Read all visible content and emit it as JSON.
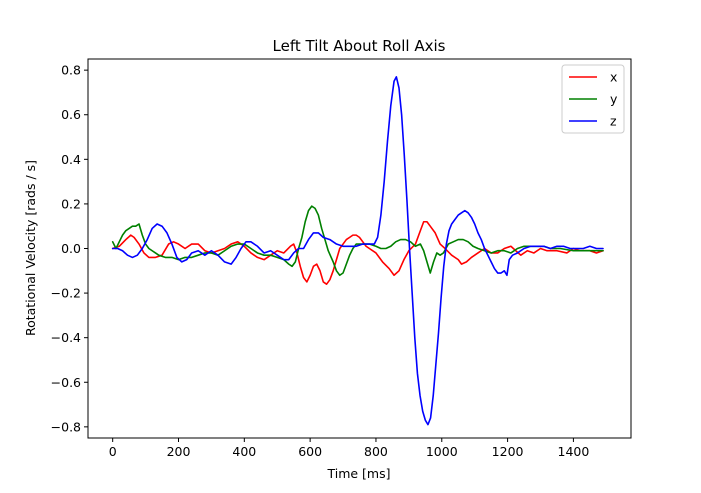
{
  "chart_data": {
    "type": "line",
    "title": "Left Tilt About Roll Axis",
    "xlabel": "Time [ms]",
    "ylabel": "Rotational Velocity [rads / s]",
    "xlim": [
      -75,
      1575
    ],
    "ylim": [
      -0.85,
      0.85
    ],
    "xticks": [
      0,
      200,
      400,
      600,
      800,
      1000,
      1200,
      1400
    ],
    "yticks": [
      -0.8,
      -0.6,
      -0.4,
      -0.2,
      0.0,
      0.2,
      0.4,
      0.6,
      0.8
    ],
    "ytick_labels": [
      "−0.8",
      "−0.6",
      "−0.4",
      "−0.2",
      "0.0",
      "0.2",
      "0.4",
      "0.6",
      "0.8"
    ],
    "grid": false,
    "legend_position": "top-right",
    "series": [
      {
        "name": "x",
        "color": "#ff0000",
        "points": [
          [
            0,
            0.0
          ],
          [
            20,
            0.01
          ],
          [
            40,
            0.04
          ],
          [
            55,
            0.06
          ],
          [
            65,
            0.05
          ],
          [
            80,
            0.02
          ],
          [
            95,
            -0.02
          ],
          [
            110,
            -0.04
          ],
          [
            130,
            -0.04
          ],
          [
            150,
            -0.03
          ],
          [
            170,
            0.02
          ],
          [
            185,
            0.03
          ],
          [
            200,
            0.02
          ],
          [
            220,
            0.0
          ],
          [
            240,
            0.02
          ],
          [
            260,
            0.02
          ],
          [
            280,
            -0.01
          ],
          [
            300,
            -0.02
          ],
          [
            320,
            -0.01
          ],
          [
            340,
            0.0
          ],
          [
            360,
            0.02
          ],
          [
            380,
            0.03
          ],
          [
            400,
            0.01
          ],
          [
            420,
            -0.02
          ],
          [
            440,
            -0.04
          ],
          [
            460,
            -0.05
          ],
          [
            480,
            -0.03
          ],
          [
            500,
            -0.01
          ],
          [
            520,
            -0.02
          ],
          [
            540,
            0.01
          ],
          [
            550,
            0.02
          ],
          [
            560,
            -0.02
          ],
          [
            570,
            -0.08
          ],
          [
            580,
            -0.13
          ],
          [
            590,
            -0.15
          ],
          [
            600,
            -0.12
          ],
          [
            610,
            -0.08
          ],
          [
            620,
            -0.07
          ],
          [
            630,
            -0.1
          ],
          [
            640,
            -0.15
          ],
          [
            650,
            -0.16
          ],
          [
            660,
            -0.14
          ],
          [
            670,
            -0.1
          ],
          [
            680,
            -0.05
          ],
          [
            690,
            0.0
          ],
          [
            700,
            0.02
          ],
          [
            710,
            0.04
          ],
          [
            720,
            0.05
          ],
          [
            730,
            0.06
          ],
          [
            740,
            0.06
          ],
          [
            750,
            0.05
          ],
          [
            760,
            0.03
          ],
          [
            770,
            0.01
          ],
          [
            780,
            0.0
          ],
          [
            800,
            -0.02
          ],
          [
            820,
            -0.06
          ],
          [
            840,
            -0.09
          ],
          [
            855,
            -0.12
          ],
          [
            870,
            -0.1
          ],
          [
            885,
            -0.05
          ],
          [
            900,
            -0.01
          ],
          [
            920,
            0.02
          ],
          [
            935,
            0.08
          ],
          [
            945,
            0.12
          ],
          [
            955,
            0.12
          ],
          [
            965,
            0.1
          ],
          [
            980,
            0.07
          ],
          [
            995,
            0.02
          ],
          [
            1010,
            0.0
          ],
          [
            1030,
            -0.03
          ],
          [
            1050,
            -0.05
          ],
          [
            1060,
            -0.07
          ],
          [
            1075,
            -0.06
          ],
          [
            1090,
            -0.04
          ],
          [
            1110,
            -0.02
          ],
          [
            1130,
            0.0
          ],
          [
            1150,
            -0.02
          ],
          [
            1170,
            -0.02
          ],
          [
            1190,
            0.0
          ],
          [
            1210,
            0.01
          ],
          [
            1225,
            -0.01
          ],
          [
            1240,
            -0.03
          ],
          [
            1260,
            -0.01
          ],
          [
            1280,
            -0.02
          ],
          [
            1300,
            0.0
          ],
          [
            1320,
            -0.01
          ],
          [
            1350,
            -0.01
          ],
          [
            1380,
            -0.02
          ],
          [
            1400,
            0.0
          ],
          [
            1420,
            -0.01
          ],
          [
            1450,
            -0.01
          ],
          [
            1470,
            -0.02
          ],
          [
            1490,
            -0.01
          ]
        ]
      },
      {
        "name": "y",
        "color": "#008000",
        "points": [
          [
            0,
            0.03
          ],
          [
            10,
            0.0
          ],
          [
            20,
            0.03
          ],
          [
            30,
            0.06
          ],
          [
            40,
            0.08
          ],
          [
            50,
            0.09
          ],
          [
            60,
            0.1
          ],
          [
            70,
            0.1
          ],
          [
            80,
            0.11
          ],
          [
            90,
            0.06
          ],
          [
            100,
            0.02
          ],
          [
            110,
            0.0
          ],
          [
            120,
            -0.01
          ],
          [
            130,
            -0.02
          ],
          [
            140,
            -0.03
          ],
          [
            160,
            -0.04
          ],
          [
            180,
            -0.04
          ],
          [
            200,
            -0.05
          ],
          [
            220,
            -0.04
          ],
          [
            240,
            -0.04
          ],
          [
            260,
            -0.03
          ],
          [
            280,
            -0.02
          ],
          [
            300,
            -0.02
          ],
          [
            320,
            -0.03
          ],
          [
            340,
            -0.01
          ],
          [
            360,
            0.01
          ],
          [
            380,
            0.02
          ],
          [
            400,
            0.02
          ],
          [
            420,
            0.0
          ],
          [
            440,
            -0.02
          ],
          [
            460,
            -0.03
          ],
          [
            480,
            -0.03
          ],
          [
            500,
            -0.04
          ],
          [
            520,
            -0.05
          ],
          [
            535,
            -0.07
          ],
          [
            545,
            -0.08
          ],
          [
            555,
            -0.06
          ],
          [
            565,
            0.0
          ],
          [
            575,
            0.05
          ],
          [
            585,
            0.12
          ],
          [
            595,
            0.17
          ],
          [
            605,
            0.19
          ],
          [
            615,
            0.18
          ],
          [
            625,
            0.15
          ],
          [
            635,
            0.09
          ],
          [
            645,
            0.04
          ],
          [
            655,
            -0.01
          ],
          [
            670,
            -0.06
          ],
          [
            680,
            -0.1
          ],
          [
            690,
            -0.12
          ],
          [
            700,
            -0.11
          ],
          [
            710,
            -0.07
          ],
          [
            720,
            -0.03
          ],
          [
            730,
            0.0
          ],
          [
            740,
            0.02
          ],
          [
            760,
            0.02
          ],
          [
            780,
            0.02
          ],
          [
            800,
            0.01
          ],
          [
            815,
            0.0
          ],
          [
            830,
            0.0
          ],
          [
            845,
            0.01
          ],
          [
            860,
            0.03
          ],
          [
            875,
            0.04
          ],
          [
            890,
            0.04
          ],
          [
            905,
            0.03
          ],
          [
            920,
            0.01
          ],
          [
            935,
            0.02
          ],
          [
            945,
            -0.01
          ],
          [
            955,
            -0.06
          ],
          [
            965,
            -0.11
          ],
          [
            975,
            -0.06
          ],
          [
            985,
            -0.02
          ],
          [
            995,
            -0.03
          ],
          [
            1005,
            -0.02
          ],
          [
            1020,
            0.02
          ],
          [
            1035,
            0.03
          ],
          [
            1050,
            0.04
          ],
          [
            1065,
            0.04
          ],
          [
            1080,
            0.03
          ],
          [
            1095,
            0.01
          ],
          [
            1110,
            0.0
          ],
          [
            1130,
            -0.01
          ],
          [
            1150,
            -0.02
          ],
          [
            1170,
            -0.01
          ],
          [
            1190,
            -0.01
          ],
          [
            1210,
            -0.02
          ],
          [
            1230,
            0.0
          ],
          [
            1250,
            0.01
          ],
          [
            1270,
            0.01
          ],
          [
            1290,
            0.01
          ],
          [
            1310,
            0.01
          ],
          [
            1330,
            0.0
          ],
          [
            1360,
            0.0
          ],
          [
            1400,
            -0.01
          ],
          [
            1440,
            -0.01
          ],
          [
            1470,
            -0.01
          ],
          [
            1490,
            -0.01
          ]
        ]
      },
      {
        "name": "z",
        "color": "#0000ff",
        "points": [
          [
            0,
            0.0
          ],
          [
            15,
            0.0
          ],
          [
            30,
            -0.01
          ],
          [
            45,
            -0.03
          ],
          [
            60,
            -0.04
          ],
          [
            75,
            -0.03
          ],
          [
            90,
            0.0
          ],
          [
            105,
            0.04
          ],
          [
            120,
            0.09
          ],
          [
            135,
            0.11
          ],
          [
            150,
            0.1
          ],
          [
            165,
            0.07
          ],
          [
            180,
            0.02
          ],
          [
            195,
            -0.04
          ],
          [
            210,
            -0.06
          ],
          [
            225,
            -0.05
          ],
          [
            240,
            -0.02
          ],
          [
            260,
            -0.01
          ],
          [
            280,
            -0.03
          ],
          [
            300,
            -0.01
          ],
          [
            320,
            -0.03
          ],
          [
            340,
            -0.06
          ],
          [
            360,
            -0.07
          ],
          [
            375,
            -0.04
          ],
          [
            390,
            0.0
          ],
          [
            405,
            0.03
          ],
          [
            420,
            0.03
          ],
          [
            440,
            0.01
          ],
          [
            460,
            -0.02
          ],
          [
            480,
            -0.01
          ],
          [
            500,
            -0.03
          ],
          [
            520,
            -0.05
          ],
          [
            535,
            -0.05
          ],
          [
            550,
            -0.02
          ],
          [
            565,
            0.0
          ],
          [
            580,
            0.0
          ],
          [
            595,
            0.04
          ],
          [
            610,
            0.07
          ],
          [
            625,
            0.07
          ],
          [
            640,
            0.05
          ],
          [
            660,
            0.04
          ],
          [
            680,
            0.02
          ],
          [
            700,
            0.01
          ],
          [
            720,
            0.01
          ],
          [
            740,
            0.01
          ],
          [
            760,
            0.02
          ],
          [
            780,
            0.02
          ],
          [
            795,
            0.02
          ],
          [
            805,
            0.05
          ],
          [
            815,
            0.15
          ],
          [
            825,
            0.3
          ],
          [
            835,
            0.48
          ],
          [
            845,
            0.64
          ],
          [
            855,
            0.75
          ],
          [
            862,
            0.77
          ],
          [
            870,
            0.72
          ],
          [
            878,
            0.6
          ],
          [
            886,
            0.42
          ],
          [
            894,
            0.22
          ],
          [
            902,
            0.0
          ],
          [
            910,
            -0.2
          ],
          [
            918,
            -0.4
          ],
          [
            926,
            -0.56
          ],
          [
            934,
            -0.66
          ],
          [
            942,
            -0.73
          ],
          [
            950,
            -0.77
          ],
          [
            958,
            -0.79
          ],
          [
            966,
            -0.76
          ],
          [
            974,
            -0.66
          ],
          [
            982,
            -0.52
          ],
          [
            990,
            -0.38
          ],
          [
            998,
            -0.22
          ],
          [
            1006,
            -0.08
          ],
          [
            1014,
            0.02
          ],
          [
            1022,
            0.08
          ],
          [
            1030,
            0.11
          ],
          [
            1040,
            0.13
          ],
          [
            1050,
            0.15
          ],
          [
            1060,
            0.16
          ],
          [
            1070,
            0.17
          ],
          [
            1080,
            0.16
          ],
          [
            1090,
            0.14
          ],
          [
            1100,
            0.11
          ],
          [
            1110,
            0.07
          ],
          [
            1120,
            0.04
          ],
          [
            1130,
            0.0
          ],
          [
            1140,
            -0.03
          ],
          [
            1150,
            -0.06
          ],
          [
            1160,
            -0.09
          ],
          [
            1170,
            -0.11
          ],
          [
            1180,
            -0.11
          ],
          [
            1190,
            -0.1
          ],
          [
            1198,
            -0.12
          ],
          [
            1205,
            -0.05
          ],
          [
            1215,
            -0.03
          ],
          [
            1230,
            -0.02
          ],
          [
            1250,
            0.0
          ],
          [
            1270,
            0.01
          ],
          [
            1290,
            0.01
          ],
          [
            1310,
            0.01
          ],
          [
            1330,
            0.0
          ],
          [
            1350,
            0.01
          ],
          [
            1370,
            0.01
          ],
          [
            1390,
            0.0
          ],
          [
            1410,
            0.0
          ],
          [
            1430,
            0.0
          ],
          [
            1450,
            0.01
          ],
          [
            1470,
            0.0
          ],
          [
            1490,
            0.0
          ]
        ]
      }
    ]
  }
}
